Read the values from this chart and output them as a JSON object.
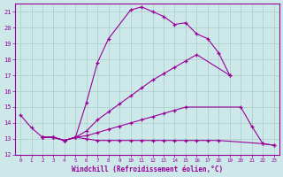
{
  "xlabel": "Windchill (Refroidissement éolien,°C)",
  "background_color": "#cde8e8",
  "grid_color": "#aacccc",
  "line_color": "#990099",
  "xlim": [
    -0.5,
    23.5
  ],
  "ylim": [
    12,
    21.5
  ],
  "yticks": [
    12,
    13,
    14,
    15,
    16,
    17,
    18,
    19,
    20,
    21
  ],
  "xticks": [
    0,
    1,
    2,
    3,
    4,
    5,
    6,
    7,
    8,
    9,
    10,
    11,
    12,
    13,
    14,
    15,
    16,
    17,
    18,
    19,
    20,
    21,
    22,
    23
  ],
  "line1_x": [
    0,
    1,
    2,
    3,
    4,
    5,
    6,
    7,
    8,
    10,
    11,
    12,
    13,
    14,
    15,
    16,
    17,
    18,
    19
  ],
  "line1_y": [
    14.5,
    13.7,
    13.1,
    13.1,
    12.9,
    13.1,
    15.3,
    17.8,
    19.3,
    21.1,
    21.3,
    21.0,
    20.7,
    20.2,
    20.3,
    19.6,
    19.3,
    18.4,
    17.0
  ],
  "line2_x": [
    2,
    3,
    4,
    5,
    6,
    7,
    8,
    9,
    10,
    11,
    12,
    13,
    14,
    15,
    16,
    19
  ],
  "line2_y": [
    13.1,
    13.1,
    12.9,
    13.1,
    13.5,
    14.2,
    14.7,
    15.2,
    15.7,
    16.2,
    16.7,
    17.1,
    17.5,
    17.9,
    18.3,
    17.0
  ],
  "line3_x": [
    2,
    3,
    4,
    5,
    6,
    7,
    8,
    9,
    10,
    11,
    12,
    13,
    14,
    15,
    20,
    21,
    22,
    23
  ],
  "line3_y": [
    13.1,
    13.1,
    12.9,
    13.1,
    13.2,
    13.4,
    13.6,
    13.8,
    14.0,
    14.2,
    14.4,
    14.6,
    14.8,
    15.0,
    15.0,
    13.8,
    12.7,
    12.6
  ],
  "line4_x": [
    2,
    3,
    4,
    5,
    6,
    7,
    8,
    9,
    10,
    11,
    12,
    13,
    14,
    15,
    16,
    17,
    18,
    22,
    23
  ],
  "line4_y": [
    13.1,
    13.1,
    12.9,
    13.1,
    13.0,
    12.9,
    12.9,
    12.9,
    12.9,
    12.9,
    12.9,
    12.9,
    12.9,
    12.9,
    12.9,
    12.9,
    12.9,
    12.7,
    12.6
  ]
}
